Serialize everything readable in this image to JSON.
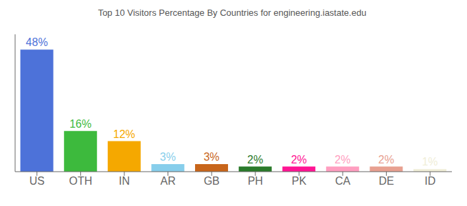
{
  "chart_data": {
    "type": "bar",
    "title": "Top 10 Visitors Percentage By Countries for engineering.iastate.edu",
    "categories": [
      "US",
      "OTH",
      "IN",
      "AR",
      "GB",
      "PH",
      "PK",
      "CA",
      "DE",
      "ID"
    ],
    "values": [
      48,
      16,
      12,
      3,
      3,
      2,
      2,
      2,
      2,
      1
    ],
    "value_labels": [
      "48%",
      "16%",
      "12%",
      "3%",
      "3%",
      "2%",
      "2%",
      "2%",
      "2%",
      "1%"
    ],
    "colors": [
      "#4d72d9",
      "#3dba3d",
      "#f5a800",
      "#87ceeb",
      "#c8651a",
      "#2a7a2a",
      "#ff1493",
      "#ff9ec0",
      "#e8a090",
      "#f0eed8"
    ],
    "ylim": [
      0,
      54
    ],
    "data_labels": true,
    "tick_labels": "x",
    "grid": false
  }
}
